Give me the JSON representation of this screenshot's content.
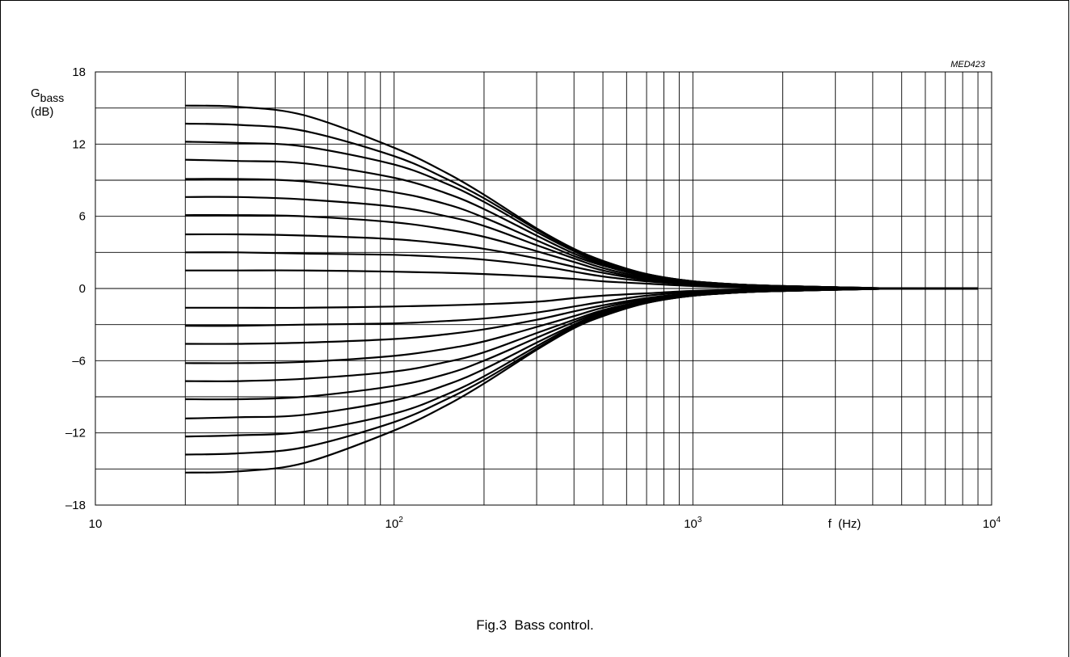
{
  "figure_id": "MED423",
  "caption": "Fig.3  Bass control.",
  "chart_data": {
    "type": "line",
    "xscale": "log",
    "xlim": [
      10,
      10000
    ],
    "ylim": [
      -18,
      18
    ],
    "ylabel": {
      "main": "G",
      "sub": "bass",
      "unit": "(dB)"
    },
    "xlabel": "f  (Hz)",
    "x_ticks": [
      {
        "value": 10,
        "base": "10",
        "exp": ""
      },
      {
        "value": 100,
        "base": "10",
        "exp": "2"
      },
      {
        "value": 1000,
        "base": "10",
        "exp": "3"
      },
      {
        "value": 10000,
        "base": "10",
        "exp": "4"
      }
    ],
    "y_ticks": [
      {
        "value": 18,
        "label": "18"
      },
      {
        "value": 12,
        "label": "12"
      },
      {
        "value": 6,
        "label": "6"
      },
      {
        "value": 0,
        "label": "0"
      },
      {
        "value": -6,
        "label": "–6"
      },
      {
        "value": -12,
        "label": "–12"
      },
      {
        "value": -18,
        "label": "–18"
      }
    ],
    "grid": true,
    "x": [
      20,
      30,
      50,
      100,
      150,
      200,
      300,
      400,
      500,
      700,
      1000,
      1500,
      2000,
      3000,
      5000,
      9000
    ],
    "series": [
      {
        "values": [
          15.2,
          15.1,
          14.4,
          11.7,
          9.6,
          7.8,
          5.0,
          3.3,
          2.3,
          1.2,
          0.6,
          0.3,
          0.2,
          0.1,
          0.0,
          0.0
        ]
      },
      {
        "values": [
          13.7,
          13.6,
          13.1,
          11.0,
          9.1,
          7.5,
          4.9,
          3.2,
          2.2,
          1.2,
          0.6,
          0.3,
          0.2,
          0.1,
          0.0,
          0.0
        ]
      },
      {
        "values": [
          12.2,
          12.1,
          11.8,
          10.3,
          8.7,
          7.2,
          4.7,
          3.1,
          2.1,
          1.1,
          0.6,
          0.3,
          0.2,
          0.1,
          0.0,
          0.0
        ]
      },
      {
        "values": [
          10.7,
          10.6,
          10.4,
          9.2,
          7.9,
          6.6,
          4.4,
          2.9,
          2.0,
          1.0,
          0.5,
          0.3,
          0.2,
          0.1,
          0.0,
          0.0
        ]
      },
      {
        "values": [
          9.1,
          9.1,
          8.9,
          8.0,
          7.0,
          5.9,
          4.0,
          2.7,
          1.9,
          1.0,
          0.5,
          0.3,
          0.2,
          0.1,
          0.0,
          0.0
        ]
      },
      {
        "values": [
          7.6,
          7.6,
          7.4,
          6.8,
          6.0,
          5.2,
          3.6,
          2.5,
          1.7,
          0.9,
          0.5,
          0.2,
          0.1,
          0.1,
          0.0,
          0.0
        ]
      },
      {
        "values": [
          6.1,
          6.1,
          6.0,
          5.5,
          4.9,
          4.3,
          3.1,
          2.2,
          1.5,
          0.8,
          0.4,
          0.2,
          0.1,
          0.1,
          0.0,
          0.0
        ]
      },
      {
        "values": [
          4.5,
          4.5,
          4.4,
          4.1,
          3.7,
          3.3,
          2.5,
          1.8,
          1.3,
          0.7,
          0.4,
          0.2,
          0.1,
          0.1,
          0.0,
          0.0
        ]
      },
      {
        "values": [
          3.0,
          3.0,
          2.9,
          2.8,
          2.6,
          2.4,
          1.9,
          1.4,
          1.0,
          0.6,
          0.3,
          0.2,
          0.1,
          0.1,
          0.0,
          0.0
        ]
      },
      {
        "values": [
          1.5,
          1.5,
          1.5,
          1.4,
          1.3,
          1.2,
          1.0,
          0.8,
          0.6,
          0.4,
          0.2,
          0.1,
          0.1,
          0.0,
          0.0,
          0.0
        ]
      },
      {
        "values": [
          -1.6,
          -1.6,
          -1.6,
          -1.5,
          -1.4,
          -1.3,
          -1.1,
          -0.8,
          -0.6,
          -0.4,
          -0.2,
          -0.1,
          -0.1,
          0.0,
          0.0,
          0.0
        ]
      },
      {
        "values": [
          -3.1,
          -3.1,
          -3.0,
          -2.9,
          -2.7,
          -2.5,
          -2.0,
          -1.5,
          -1.1,
          -0.6,
          -0.3,
          -0.2,
          -0.1,
          -0.1,
          0.0,
          0.0
        ]
      },
      {
        "values": [
          -4.6,
          -4.6,
          -4.5,
          -4.2,
          -3.8,
          -3.4,
          -2.6,
          -1.9,
          -1.4,
          -0.8,
          -0.4,
          -0.2,
          -0.1,
          -0.1,
          0.0,
          0.0
        ]
      },
      {
        "values": [
          -6.2,
          -6.2,
          -6.1,
          -5.6,
          -5.0,
          -4.4,
          -3.2,
          -2.3,
          -1.6,
          -0.9,
          -0.5,
          -0.2,
          -0.1,
          -0.1,
          0.0,
          0.0
        ]
      },
      {
        "values": [
          -7.7,
          -7.7,
          -7.5,
          -6.9,
          -6.1,
          -5.3,
          -3.7,
          -2.6,
          -1.8,
          -1.0,
          -0.5,
          -0.3,
          -0.2,
          -0.1,
          0.0,
          0.0
        ]
      },
      {
        "values": [
          -9.2,
          -9.2,
          -9.0,
          -8.1,
          -7.1,
          -6.0,
          -4.1,
          -2.8,
          -1.9,
          -1.0,
          -0.5,
          -0.3,
          -0.2,
          -0.1,
          0.0,
          0.0
        ]
      },
      {
        "values": [
          -10.8,
          -10.7,
          -10.5,
          -9.3,
          -8.0,
          -6.7,
          -4.5,
          -3.0,
          -2.0,
          -1.1,
          -0.6,
          -0.3,
          -0.2,
          -0.1,
          0.0,
          0.0
        ]
      },
      {
        "values": [
          -12.3,
          -12.2,
          -11.9,
          -10.4,
          -8.8,
          -7.3,
          -4.8,
          -3.1,
          -2.1,
          -1.1,
          -0.6,
          -0.3,
          -0.2,
          -0.1,
          0.0,
          0.0
        ]
      },
      {
        "values": [
          -13.8,
          -13.7,
          -13.2,
          -11.1,
          -9.2,
          -7.6,
          -5.0,
          -3.2,
          -2.2,
          -1.2,
          -0.6,
          -0.3,
          -0.2,
          -0.1,
          0.0,
          0.0
        ]
      },
      {
        "values": [
          -15.3,
          -15.2,
          -14.5,
          -11.8,
          -9.7,
          -7.9,
          -5.1,
          -3.3,
          -2.3,
          -1.2,
          -0.6,
          -0.3,
          -0.2,
          -0.1,
          0.0,
          0.0
        ]
      }
    ]
  }
}
